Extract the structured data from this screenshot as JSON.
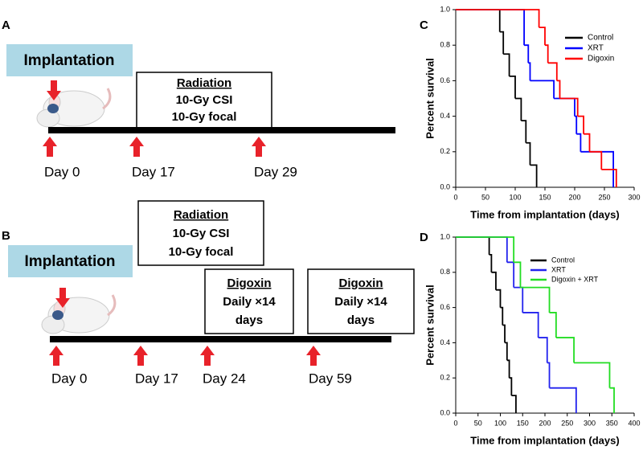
{
  "timeline_a": {
    "label": "A",
    "implantation": "Implantation",
    "radiation": {
      "title": "Radiation",
      "lines": [
        "10-Gy CSI",
        "10-Gy focal"
      ]
    },
    "days": [
      "Day 0",
      "Day 17",
      "Day 29"
    ]
  },
  "timeline_b": {
    "label": "B",
    "implantation": "Implantation",
    "radiation": {
      "title": "Radiation",
      "lines": [
        "10-Gy CSI",
        "10-Gy focal"
      ]
    },
    "digoxin": [
      {
        "title": "Digoxin",
        "lines": [
          "Daily ×14",
          "days"
        ]
      },
      {
        "title": "Digoxin",
        "lines": [
          "Daily ×14",
          "days"
        ]
      }
    ],
    "days": [
      "Day 0",
      "Day 17",
      "Day 24",
      "Day 59"
    ]
  },
  "chart_data": [
    {
      "label": "C",
      "type": "step",
      "xlabel": "Time from implantation (days)",
      "ylabel": "Percent survival",
      "xlim": [
        0,
        300
      ],
      "xticks": [
        0,
        50,
        100,
        150,
        200,
        250,
        300
      ],
      "ylim": [
        0,
        1
      ],
      "yticks": [
        {
          "value": 0,
          "label": "0.0"
        },
        0.2,
        0.4,
        0.6,
        0.8,
        {
          "value": 1,
          "label": "1.0"
        }
      ],
      "series": [
        {
          "name": "Control",
          "color": "#000000",
          "x": [
            0,
            74,
            80,
            90,
            100,
            110,
            118,
            125,
            136
          ],
          "values": [
            1,
            0.875,
            0.75,
            0.625,
            0.5,
            0.375,
            0.25,
            0.125,
            0
          ]
        },
        {
          "name": "XRT",
          "color": "#0000ff",
          "x": [
            0,
            115,
            122,
            125,
            165,
            200,
            203,
            210,
            265
          ],
          "values": [
            1,
            0.8,
            0.7,
            0.6,
            0.5,
            0.4,
            0.3,
            0.2,
            0
          ]
        },
        {
          "name": "Digoxin",
          "color": "#ff0000",
          "x": [
            0,
            140,
            150,
            155,
            170,
            175,
            205,
            215,
            225,
            245,
            270
          ],
          "values": [
            1,
            0.9,
            0.8,
            0.7,
            0.6,
            0.5,
            0.4,
            0.3,
            0.2,
            0.1,
            0
          ]
        }
      ]
    },
    {
      "label": "D",
      "type": "step",
      "xlabel": "Time from implantation (days)",
      "ylabel": "Percent survival",
      "xlim": [
        0,
        400
      ],
      "xticks": [
        0,
        50,
        100,
        150,
        200,
        250,
        300,
        350,
        400
      ],
      "ylim": [
        0,
        1
      ],
      "yticks": [
        {
          "value": 0,
          "label": "0.0"
        },
        0.2,
        0.4,
        0.6,
        0.8,
        {
          "value": 1,
          "label": "1.0"
        }
      ],
      "series": [
        {
          "name": "Control",
          "color": "#000000",
          "x": [
            0,
            75,
            80,
            90,
            100,
            105,
            110,
            115,
            120,
            125,
            135
          ],
          "values": [
            1,
            0.9,
            0.8,
            0.7,
            0.6,
            0.5,
            0.4,
            0.3,
            0.2,
            0.1,
            0
          ]
        },
        {
          "name": "XRT",
          "color": "#2222ee",
          "x": [
            0,
            115,
            130,
            150,
            185,
            205,
            210,
            270
          ],
          "values": [
            1,
            0.857,
            0.714,
            0.571,
            0.429,
            0.286,
            0.143,
            0
          ]
        },
        {
          "name": "Digoxin + XRT",
          "color": "#22dd22",
          "x": [
            0,
            130,
            145,
            210,
            225,
            265,
            345,
            355
          ],
          "values": [
            1,
            0.857,
            0.714,
            0.571,
            0.429,
            0.286,
            0.143,
            0
          ]
        }
      ]
    }
  ]
}
